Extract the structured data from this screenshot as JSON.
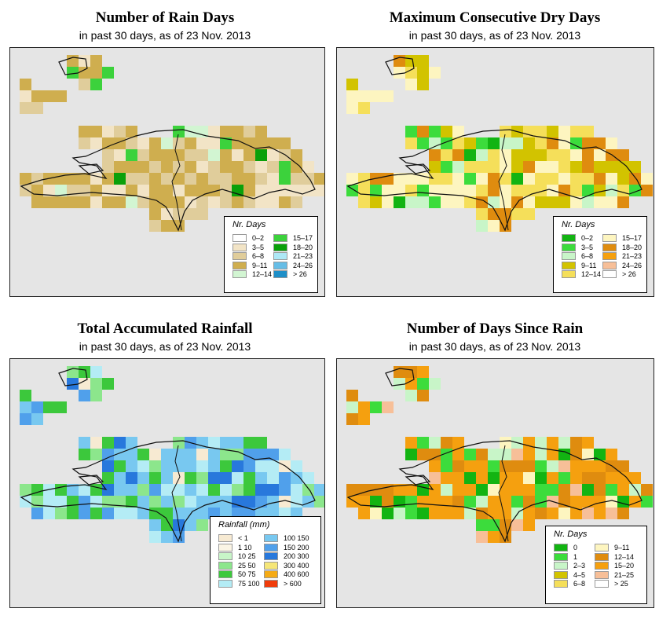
{
  "subtitle": "in past 30 days, as of  23 Nov. 2013",
  "panels": [
    {
      "id": "rain_days",
      "title": "Number of Rain Days",
      "legend_title": "Nr. Days",
      "legend_columns": 2,
      "legend": [
        {
          "label": "0–2",
          "color": "#ffffff"
        },
        {
          "label": "3–5",
          "color": "#f2e4c6"
        },
        {
          "label": "6–8",
          "color": "#e0cd9b"
        },
        {
          "label": "9–11",
          "color": "#cfae4f"
        },
        {
          "label": "12–14",
          "color": "#d2f5d2"
        },
        {
          "label": "15–17",
          "color": "#3cd23c"
        },
        {
          "label": "18–20",
          "color": "#0aa00a"
        },
        {
          "label": "21–23",
          "color": "#aee8f6"
        },
        {
          "label": "24–26",
          "color": "#66bde6"
        },
        {
          "label": "> 26",
          "color": "#1e8fc8"
        }
      ]
    },
    {
      "id": "max_dry_days",
      "title": "Maximum Consecutive Dry Days",
      "legend_title": "Nr. Days",
      "legend_columns": 2,
      "legend": [
        {
          "label": "0–2",
          "color": "#12b412"
        },
        {
          "label": "3–5",
          "color": "#3cdc3c"
        },
        {
          "label": "6–8",
          "color": "#c8f5c8"
        },
        {
          "label": "9–11",
          "color": "#d2c300"
        },
        {
          "label": "12–14",
          "color": "#f5df5a"
        },
        {
          "label": "15–17",
          "color": "#fdf5c0"
        },
        {
          "label": "18–20",
          "color": "#df8c0f"
        },
        {
          "label": "21–23",
          "color": "#f5a00f"
        },
        {
          "label": "24–26",
          "color": "#f7bf98"
        },
        {
          "label": "> 26",
          "color": "#ffffff"
        }
      ]
    },
    {
      "id": "total_rainfall",
      "title": "Total Accumulated Rainfall",
      "legend_title": "Rainfall (mm)",
      "legend_columns": 2,
      "legend": [
        {
          "label": "< 1",
          "color": "#f7ead2"
        },
        {
          "label": "1   10",
          "color": "#fbf5e5"
        },
        {
          "label": "10   25",
          "color": "#c8f5c8"
        },
        {
          "label": "25   50",
          "color": "#8ce68c"
        },
        {
          "label": "50   75",
          "color": "#3cc83c"
        },
        {
          "label": "75   100",
          "color": "#b4ecf5"
        },
        {
          "label": "100   150",
          "color": "#78c8f0"
        },
        {
          "label": "150   200",
          "color": "#50a0eb"
        },
        {
          "label": "200   300",
          "color": "#2878dc"
        },
        {
          "label": "300   400",
          "color": "#f5e678"
        },
        {
          "label": "400   600",
          "color": "#f5aa14"
        },
        {
          "label": "> 600",
          "color": "#f03c0a"
        }
      ]
    },
    {
      "id": "days_since_rain",
      "title": "Number of Days Since Rain",
      "legend_title": "Nr. Days",
      "legend_columns": 2,
      "legend": [
        {
          "label": "0",
          "color": "#12b412"
        },
        {
          "label": "1",
          "color": "#3cdc3c"
        },
        {
          "label": "2–3",
          "color": "#c8f5c8"
        },
        {
          "label": "4–5",
          "color": "#d2c300"
        },
        {
          "label": "6–8",
          "color": "#f5df5a"
        },
        {
          "label": "9–11",
          "color": "#fdf5c0"
        },
        {
          "label": "12–14",
          "color": "#df8c0f"
        },
        {
          "label": "15–20",
          "color": "#f5a00f"
        },
        {
          "label": "21–25",
          "color": "#f7bf98"
        },
        {
          "label": "> 25",
          "color": "#ffffff"
        }
      ]
    }
  ]
}
